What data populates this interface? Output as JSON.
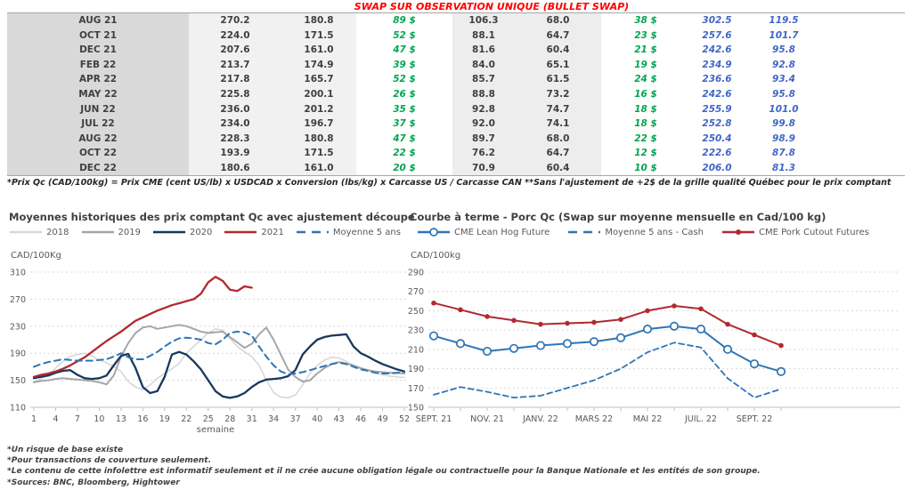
{
  "table": {
    "title": "SWAP SUR OBSERVATION UNIQUE (BULLET SWAP)",
    "rows": [
      {
        "month": "AUG 21",
        "values": [
          "270.2",
          "180.8",
          "89 $",
          "106.3",
          "68.0",
          "38 $",
          "302.5",
          "119.5"
        ]
      },
      {
        "month": "OCT 21",
        "values": [
          "224.0",
          "171.5",
          "52 $",
          "88.1",
          "64.7",
          "23 $",
          "257.6",
          "101.7"
        ]
      },
      {
        "month": "DEC 21",
        "values": [
          "207.6",
          "161.0",
          "47 $",
          "81.6",
          "60.4",
          "21 $",
          "242.6",
          "95.8"
        ]
      },
      {
        "month": "FEB 22",
        "values": [
          "213.7",
          "174.9",
          "39 $",
          "84.0",
          "65.1",
          "19 $",
          "234.9",
          "92.8"
        ]
      },
      {
        "month": "APR 22",
        "values": [
          "217.8",
          "165.7",
          "52 $",
          "85.7",
          "61.5",
          "24 $",
          "236.6",
          "93.4"
        ]
      },
      {
        "month": "MAY 22",
        "values": [
          "225.8",
          "200.1",
          "26 $",
          "88.8",
          "73.2",
          "16 $",
          "242.6",
          "95.8"
        ]
      },
      {
        "month": "JUN 22",
        "values": [
          "236.0",
          "201.2",
          "35 $",
          "92.8",
          "74.7",
          "18 $",
          "255.9",
          "101.0"
        ]
      },
      {
        "month": "JUL 22",
        "values": [
          "234.0",
          "196.7",
          "37 $",
          "92.0",
          "74.1",
          "18 $",
          "252.8",
          "99.8"
        ]
      },
      {
        "month": "AUG 22",
        "values": [
          "228.3",
          "180.8",
          "47 $",
          "89.7",
          "68.0",
          "22 $",
          "250.4",
          "98.9"
        ]
      },
      {
        "month": "OCT 22",
        "values": [
          "193.9",
          "171.5",
          "22 $",
          "76.2",
          "64.7",
          "12 $",
          "222.6",
          "87.8"
        ]
      },
      {
        "month": "DEC 22",
        "values": [
          "180.6",
          "161.0",
          "20 $",
          "70.9",
          "60.4",
          "10 $",
          "206.0",
          "81.3"
        ]
      }
    ],
    "footnote": "*Prix Qc (CAD/100kg) = Prix CME (cent US/lb) x USDCAD x Conversion (lbs/kg) x Carcasse US / Carcasse CAN **Sans l'ajustement de +2$ de la grille qualité Québec pour le prix comptant"
  },
  "colors": {
    "title_red": "#ff0000",
    "swap_green": "#00a651",
    "price_blue": "#4066c8",
    "navy": "#17375e",
    "red_line": "#b02a30",
    "steel_blue": "#2e75b6",
    "gray_2019": "#a6a6a6",
    "gray_2018": "#d8d8d8"
  },
  "chart_data": [
    {
      "type": "line",
      "title": "Moyennes historiques des prix comptant Qc avec ajustement découpe",
      "y_unit": "CAD/100Kg",
      "xlabel": "semaine",
      "ylim": [
        110,
        310
      ],
      "ystep": 40,
      "x_ticks": [
        1,
        4,
        7,
        10,
        13,
        16,
        19,
        22,
        25,
        28,
        31,
        34,
        37,
        40,
        43,
        46,
        49,
        52
      ],
      "x_range": [
        1,
        52
      ],
      "grid": true,
      "legend_position": "top",
      "series": [
        {
          "name": "2018",
          "color": "#d8d8d8",
          "width": 1.6,
          "values": [
            148,
            152,
            158,
            168,
            178,
            185,
            188,
            190,
            186,
            180,
            176,
            170,
            163,
            148,
            140,
            136,
            143,
            153,
            160,
            167,
            175,
            190,
            200,
            210,
            220,
            226,
            224,
            212,
            200,
            192,
            185,
            172,
            150,
            132,
            125,
            124,
            128,
            143,
            160,
            172,
            180,
            184,
            183,
            178,
            171,
            167,
            164,
            161,
            158,
            156,
            155,
            154
          ]
        },
        {
          "name": "2019",
          "color": "#a6a6a6",
          "width": 2,
          "values": [
            147,
            149,
            150,
            152,
            153,
            152,
            151,
            150,
            149,
            147,
            144,
            157,
            185,
            205,
            220,
            228,
            230,
            226,
            228,
            230,
            232,
            230,
            226,
            222,
            220,
            221,
            222,
            214,
            206,
            198,
            204,
            218,
            228,
            210,
            188,
            166,
            155,
            148,
            150,
            160,
            168,
            174,
            177,
            175,
            172,
            168,
            165,
            163,
            162,
            161,
            161,
            160
          ]
        },
        {
          "name": "2020",
          "color": "#17375e",
          "width": 2.3,
          "values": [
            153,
            155,
            157,
            161,
            164,
            165,
            158,
            153,
            152,
            153,
            157,
            172,
            186,
            189,
            168,
            140,
            131,
            134,
            155,
            188,
            192,
            188,
            178,
            166,
            150,
            134,
            126,
            124,
            126,
            131,
            140,
            147,
            151,
            152,
            153,
            156,
            165,
            188,
            200,
            210,
            214,
            216,
            217,
            218,
            200,
            190,
            185,
            179,
            174,
            170,
            166,
            163
          ]
        },
        {
          "name": "2021",
          "color": "#b02a30",
          "width": 2.3,
          "values": [
            155,
            158,
            160,
            163,
            167,
            172,
            178,
            184,
            192,
            200,
            208,
            215,
            222,
            230,
            238,
            243,
            248,
            253,
            257,
            261,
            264,
            267,
            270,
            278,
            295,
            303,
            297,
            284,
            282,
            289,
            287
          ]
        },
        {
          "name": "Moyenne 5 ans",
          "color": "#2e75b6",
          "width": 2,
          "dash": "7 5",
          "values": [
            170,
            174,
            177,
            179,
            181,
            180,
            179,
            179,
            179,
            180,
            181,
            185,
            190,
            184,
            181,
            181,
            186,
            192,
            200,
            207,
            212,
            213,
            212,
            210,
            205,
            203,
            210,
            220,
            222,
            221,
            216,
            200,
            185,
            172,
            163,
            159,
            160,
            162,
            165,
            168,
            171,
            174,
            176,
            174,
            170,
            166,
            164,
            161,
            160,
            160,
            161,
            162
          ]
        }
      ]
    },
    {
      "type": "line",
      "title": "Courbe à terme - Porc Qc (Swap sur moyenne mensuelle en Cad/100 kg)",
      "y_unit": "CAD/100kg",
      "ylim": [
        150,
        290
      ],
      "ystep": 20,
      "n_points": 14,
      "x_tick_labels": [
        "SEPT. 21",
        "NOV. 21",
        "JANV. 22",
        "MARS 22",
        "MAI 22",
        "JUIL. 22",
        "SEPT. 22"
      ],
      "tick_every": 2,
      "grid": true,
      "legend_position": "top",
      "series": [
        {
          "name": "CME Lean Hog Future",
          "color": "#2e75b6",
          "width": 2,
          "marker": "open",
          "values": [
            224,
            216,
            208,
            211,
            214,
            216,
            218,
            222,
            231,
            234,
            231,
            210,
            195,
            187
          ]
        },
        {
          "name": "Moyenne 5 ans - Cash",
          "color": "#2e75b6",
          "width": 1.8,
          "dash": "6 4",
          "values": [
            163,
            171,
            166,
            160,
            162,
            170,
            178,
            190,
            207,
            217,
            212,
            180,
            160,
            169
          ]
        },
        {
          "name": "CME Pork Cutout Futures",
          "color": "#b02a30",
          "width": 2,
          "marker": "filled",
          "values": [
            258,
            251,
            244,
            240,
            236,
            237,
            238,
            241,
            250,
            255,
            252,
            236,
            225,
            214
          ]
        }
      ]
    }
  ],
  "footnotes": [
    "*Un risque de base existe",
    "*Pour transactions de couverture seulement.",
    "*Le contenu de cette infolettre est informatif seulement et il ne crée aucune obligation légale ou contractuelle pour la Banque Nationale et les entités de son groupe.",
    "*Sources: BNC, Bloomberg, Hightower"
  ]
}
